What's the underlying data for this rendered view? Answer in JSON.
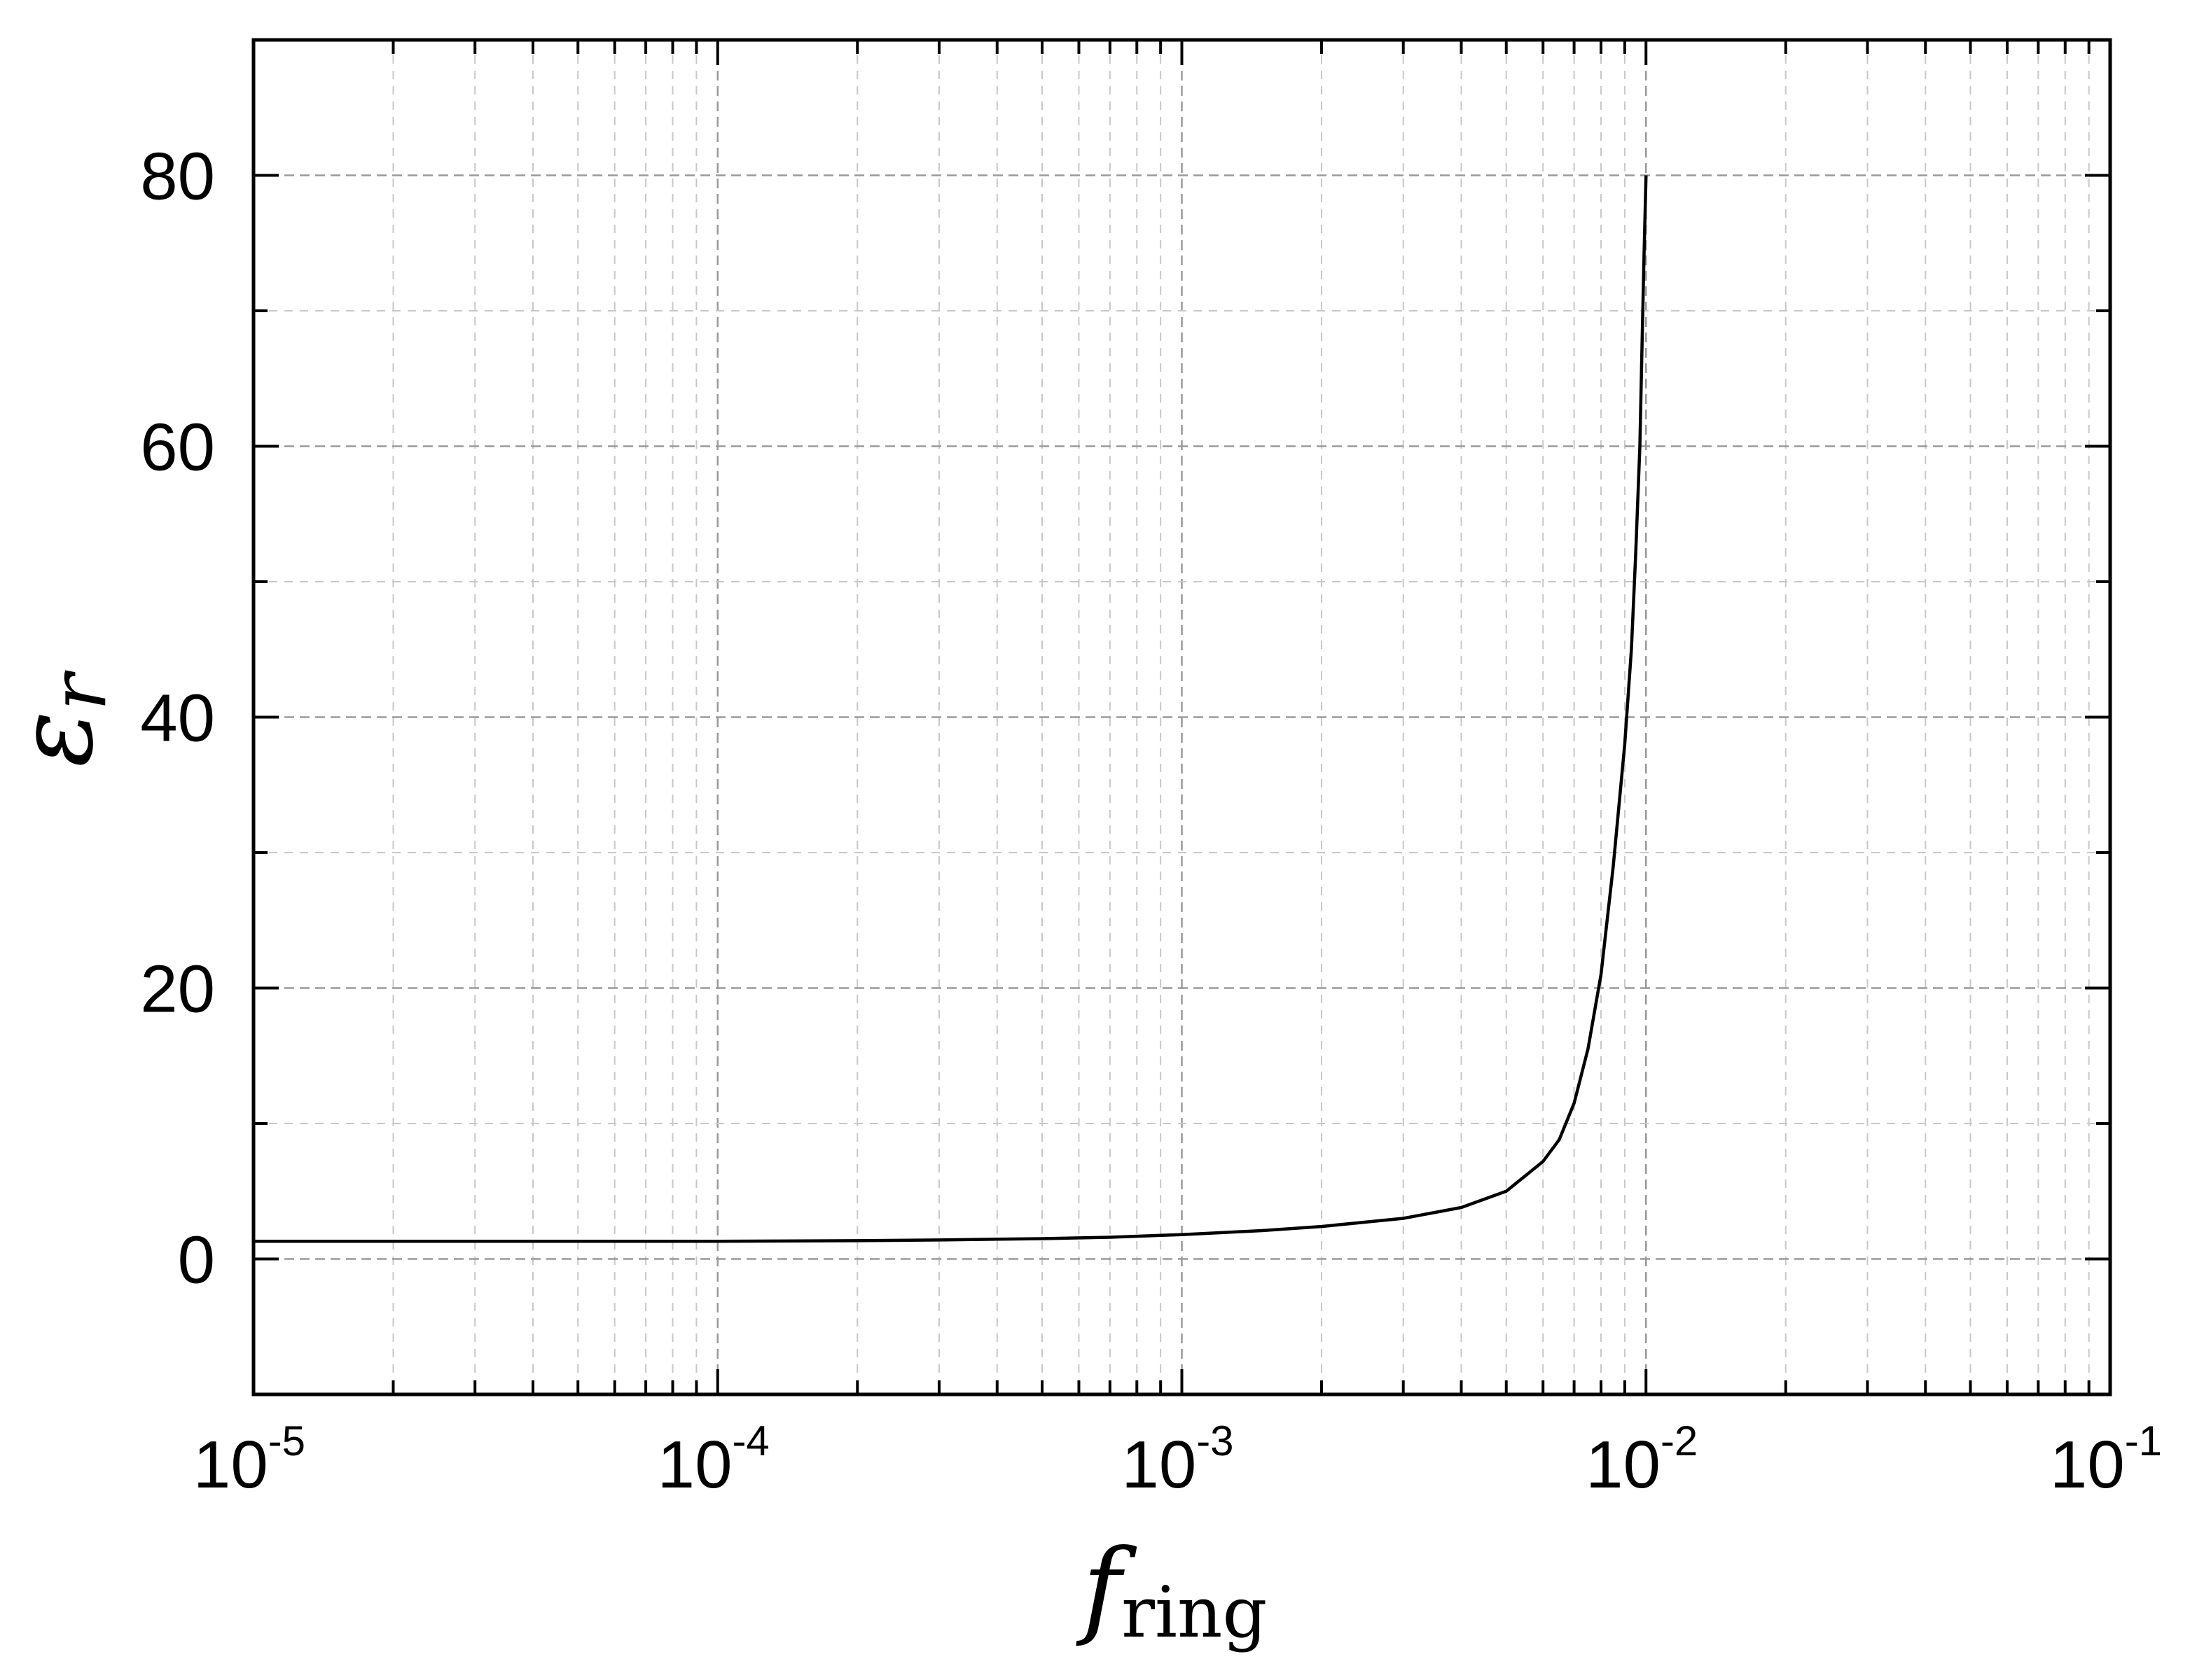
{
  "chart_data": {
    "type": "line",
    "title": "",
    "xlabel": {
      "symbol": "f",
      "subscript": "ring"
    },
    "ylabel": {
      "symbol": "ε",
      "subscript": "r"
    },
    "xscale": "log",
    "xlim": [
      1e-05,
      0.1
    ],
    "ylim": [
      -10,
      90
    ],
    "x_ticks": [
      {
        "base": "10",
        "exp": "-5",
        "value": 1e-05
      },
      {
        "base": "10",
        "exp": "-4",
        "value": 0.0001
      },
      {
        "base": "10",
        "exp": "-3",
        "value": 0.001
      },
      {
        "base": "10",
        "exp": "-2",
        "value": 0.01
      },
      {
        "base": "10",
        "exp": "-1",
        "value": 0.1
      }
    ],
    "y_ticks": [
      "0",
      "20",
      "40",
      "60",
      "80"
    ],
    "grid": true,
    "legend": "none",
    "series": [
      {
        "color": "#000000",
        "x": [
          1e-05,
          3e-05,
          0.0001,
          0.0002,
          0.0003,
          0.0005,
          0.0007,
          0.001,
          0.0015,
          0.002,
          0.003,
          0.004,
          0.005,
          0.006,
          0.0065,
          0.007,
          0.0075,
          0.008,
          0.0085,
          0.009,
          0.0093,
          0.0095,
          0.0097,
          0.0098,
          0.0099,
          0.01
        ],
        "y": [
          1.3,
          1.3,
          1.3,
          1.35,
          1.4,
          1.5,
          1.6,
          1.8,
          2.1,
          2.4,
          3.0,
          3.8,
          5.0,
          7.2,
          8.8,
          11.5,
          15.5,
          21.0,
          29.0,
          38.0,
          45.0,
          52.0,
          60.0,
          67.0,
          74.0,
          80.0
        ]
      }
    ]
  }
}
